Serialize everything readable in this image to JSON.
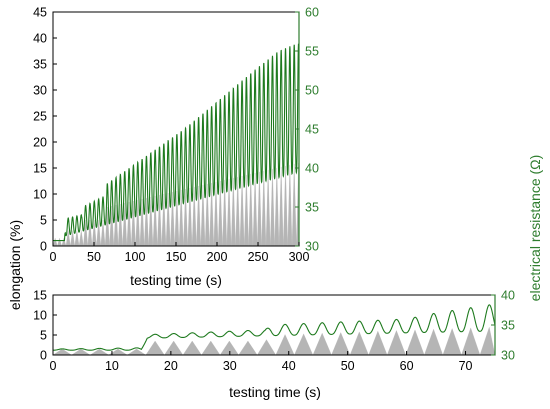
{
  "colors": {
    "elongation": "#b5b5b5",
    "resistance": "#1e7a1e",
    "right_axis": "#2e7d2e"
  },
  "axes": {
    "shared_ylabel": "elongation (%)",
    "shared_y2label": "electrical resistance (Ω)"
  },
  "chart_data": [
    {
      "type": "area",
      "panel": "top",
      "xlabel": "testing time (s)",
      "xlim": [
        0,
        300
      ],
      "ylim": [
        0,
        45
      ],
      "y2lim": [
        30,
        60
      ],
      "xticks": [
        0,
        50,
        100,
        150,
        200,
        250,
        300
      ],
      "yticks": [
        0,
        5,
        10,
        15,
        20,
        25,
        30,
        35,
        40,
        45
      ],
      "y2ticks": [
        30,
        35,
        40,
        45,
        50,
        55,
        60
      ],
      "grid": false,
      "series": [
        {
          "axis": "left",
          "kind": "filled triangular cycles",
          "peaks": [
            [
              0,
              1.5
            ],
            [
              15,
              1.5
            ],
            [
              16,
              3
            ],
            [
              35,
              3
            ],
            [
              36,
              5
            ],
            [
              65,
              5
            ],
            [
              66,
              7.5
            ],
            [
              300,
              16
            ]
          ]
        },
        {
          "axis": "right",
          "kind": "line",
          "baseline": [
            [
              0,
              30.7
            ],
            [
              14,
              30.7
            ],
            [
              15,
              31.3
            ],
            [
              300,
              39.5
            ]
          ],
          "peaks": [
            [
              0,
              30.7
            ],
            [
              14,
              30.7
            ],
            [
              15,
              33.5
            ],
            [
              35,
              34
            ],
            [
              36,
              35
            ],
            [
              65,
              36.5
            ],
            [
              66,
              38
            ],
            [
              100,
              40.5
            ],
            [
              160,
              45
            ],
            [
              200,
              48.5
            ],
            [
              245,
              52.5
            ],
            [
              275,
              55
            ],
            [
              298,
              56
            ]
          ]
        }
      ]
    },
    {
      "type": "area",
      "panel": "bottom",
      "xlabel": "testing time (s)",
      "xlim": [
        0,
        75
      ],
      "ylim": [
        0,
        15
      ],
      "y2lim": [
        30,
        40
      ],
      "xticks": [
        0,
        10,
        20,
        30,
        40,
        50,
        60,
        70
      ],
      "yticks": [
        0,
        5,
        10,
        15
      ],
      "y2ticks": [
        30,
        35,
        40
      ],
      "grid": false,
      "series": [
        {
          "axis": "left",
          "kind": "filled triangular cycles",
          "peaks": [
            [
              0,
              1.5
            ],
            [
              15,
              1.5
            ],
            [
              16,
              3.5
            ],
            [
              36,
              3.5
            ],
            [
              37,
              5
            ],
            [
              75,
              7
            ]
          ]
        },
        {
          "axis": "right",
          "kind": "line",
          "baseline": [
            [
              0,
              30.8
            ],
            [
              15,
              30.8
            ],
            [
              16,
              32.8
            ],
            [
              75,
              34
            ]
          ],
          "peaks": [
            [
              0,
              31
            ],
            [
              15,
              31.2
            ],
            [
              16,
              33.4
            ],
            [
              36,
              34.2
            ],
            [
              37,
              35
            ],
            [
              60,
              36
            ],
            [
              65,
              37
            ],
            [
              75,
              38.5
            ]
          ]
        }
      ]
    }
  ]
}
